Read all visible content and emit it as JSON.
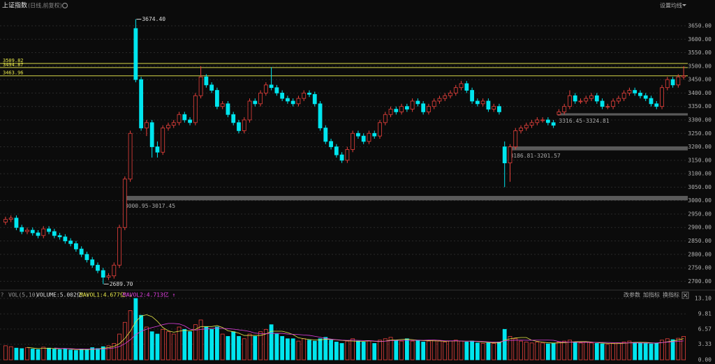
{
  "chart_data": [
    {
      "type": "candlestick",
      "title": "上证指数",
      "subtitle": "(日线,前复权)",
      "settings_label": "设置均线",
      "up_color": "#e8413c",
      "down_color": "#00e5ee",
      "open": [
        2920,
        2930,
        2935,
        2900,
        2885,
        2890,
        2880,
        2870,
        2895,
        2885,
        2870,
        2865,
        2850,
        2840,
        2820,
        2800,
        2780,
        2760,
        2740,
        2715,
        2720,
        2760,
        2900,
        3080,
        3640,
        3450,
        3270,
        3290,
        3200,
        3180,
        3270,
        3280,
        3290,
        3320,
        3300,
        3290,
        3390,
        3460,
        3430,
        3410,
        3350,
        3360,
        3320,
        3290,
        3260,
        3300,
        3370,
        3360,
        3400,
        3430,
        3420,
        3400,
        3380,
        3370,
        3360,
        3380,
        3400,
        3395,
        3360,
        3270,
        3220,
        3200,
        3170,
        3150,
        3190,
        3250,
        3240,
        3220,
        3250,
        3240,
        3290,
        3320,
        3340,
        3330,
        3350,
        3340,
        3370,
        3360,
        3330,
        3350,
        3370,
        3380,
        3390,
        3400,
        3420,
        3435,
        3410,
        3370,
        3360,
        3370,
        3340,
        3350,
        3200,
        3140,
        3200,
        3260,
        3270,
        3280,
        3290,
        3300,
        3300,
        3290,
        3320,
        3330,
        3350,
        3390,
        3370,
        3370,
        3380,
        3390,
        3370,
        3350,
        3350,
        3370,
        3380,
        3400,
        3410,
        3400,
        3390,
        3380,
        3360,
        3350,
        3420,
        3450,
        3430,
        3460
      ],
      "high": [
        2940,
        2945,
        2945,
        2910,
        2900,
        2900,
        2890,
        2905,
        2905,
        2895,
        2880,
        2875,
        2860,
        2850,
        2830,
        2810,
        2790,
        2770,
        2750,
        2730,
        2770,
        2910,
        3090,
        3260,
        3674.4,
        3460,
        3300,
        3300,
        3220,
        3280,
        3290,
        3300,
        3330,
        3330,
        3310,
        3400,
        3500,
        3470,
        3440,
        3420,
        3370,
        3370,
        3330,
        3300,
        3310,
        3380,
        3380,
        3410,
        3440,
        3496,
        3430,
        3410,
        3390,
        3380,
        3390,
        3410,
        3410,
        3405,
        3370,
        3280,
        3230,
        3210,
        3180,
        3200,
        3260,
        3260,
        3250,
        3260,
        3260,
        3300,
        3330,
        3350,
        3350,
        3360,
        3360,
        3380,
        3380,
        3370,
        3360,
        3380,
        3390,
        3400,
        3410,
        3430,
        3445,
        3445,
        3420,
        3380,
        3380,
        3380,
        3360,
        3360,
        3220,
        3210,
        3270,
        3280,
        3290,
        3300,
        3310,
        3310,
        3310,
        3300,
        3340,
        3360,
        3410,
        3400,
        3380,
        3390,
        3400,
        3400,
        3380,
        3360,
        3380,
        3390,
        3410,
        3420,
        3420,
        3410,
        3400,
        3390,
        3370,
        3430,
        3460,
        3460,
        3470,
        3500
      ],
      "low": [
        2910,
        2920,
        2890,
        2875,
        2875,
        2870,
        2860,
        2860,
        2875,
        2860,
        2855,
        2840,
        2830,
        2810,
        2790,
        2770,
        2750,
        2730,
        2689.7,
        2705,
        2710,
        2750,
        2890,
        3070,
        3440,
        3260,
        3240,
        3160,
        3160,
        3170,
        3260,
        3270,
        3280,
        3290,
        3280,
        3280,
        3380,
        3420,
        3400,
        3340,
        3340,
        3310,
        3280,
        3250,
        3250,
        3290,
        3350,
        3350,
        3390,
        3410,
        3390,
        3370,
        3360,
        3350,
        3350,
        3370,
        3385,
        3350,
        3260,
        3210,
        3190,
        3160,
        3140,
        3140,
        3180,
        3230,
        3210,
        3210,
        3230,
        3230,
        3280,
        3310,
        3320,
        3320,
        3330,
        3330,
        3350,
        3320,
        3320,
        3340,
        3360,
        3370,
        3380,
        3390,
        3410,
        3400,
        3360,
        3350,
        3350,
        3330,
        3330,
        3320,
        3050,
        3070,
        3190,
        3250,
        3260,
        3270,
        3280,
        3290,
        3280,
        3270,
        3316.45,
        3320,
        3340,
        3360,
        3360,
        3360,
        3370,
        3360,
        3340,
        3340,
        3340,
        3360,
        3370,
        3390,
        3390,
        3380,
        3370,
        3350,
        3340,
        3340,
        3410,
        3420,
        3420,
        3450
      ],
      "close": [
        2930,
        2935,
        2900,
        2885,
        2890,
        2880,
        2870,
        2895,
        2885,
        2870,
        2865,
        2850,
        2840,
        2820,
        2800,
        2780,
        2760,
        2740,
        2715,
        2720,
        2760,
        2900,
        3080,
        3250,
        3450,
        3270,
        3290,
        3200,
        3180,
        3270,
        3280,
        3290,
        3320,
        3300,
        3290,
        3390,
        3460,
        3430,
        3410,
        3350,
        3360,
        3320,
        3290,
        3260,
        3300,
        3370,
        3360,
        3400,
        3430,
        3420,
        3400,
        3380,
        3370,
        3360,
        3380,
        3400,
        3395,
        3360,
        3270,
        3220,
        3200,
        3170,
        3150,
        3190,
        3250,
        3240,
        3220,
        3250,
        3240,
        3290,
        3320,
        3340,
        3330,
        3350,
        3340,
        3370,
        3360,
        3330,
        3350,
        3370,
        3380,
        3390,
        3400,
        3420,
        3435,
        3410,
        3370,
        3360,
        3370,
        3340,
        3350,
        3330,
        3140,
        3200,
        3260,
        3270,
        3280,
        3290,
        3300,
        3300,
        3290,
        3280,
        3330,
        3350,
        3390,
        3370,
        3370,
        3380,
        3390,
        3370,
        3350,
        3350,
        3370,
        3380,
        3400,
        3410,
        3400,
        3390,
        3380,
        3360,
        3350,
        3420,
        3450,
        3430,
        3460,
        3463.96
      ],
      "ylim": [
        2675,
        3720
      ],
      "yticks": [
        {
          "value": 2700,
          "label": "2700.00"
        },
        {
          "value": 2750,
          "label": "2750.00"
        },
        {
          "value": 2800,
          "label": "2800.00"
        },
        {
          "value": 2850,
          "label": "2850.00"
        },
        {
          "value": 2900,
          "label": "2900.00"
        },
        {
          "value": 2950,
          "label": "2950.00"
        },
        {
          "value": 3000,
          "label": "3000.00"
        },
        {
          "value": 3050,
          "label": "3050.00"
        },
        {
          "value": 3100,
          "label": "3100.00"
        },
        {
          "value": 3150,
          "label": "3150.00"
        },
        {
          "value": 3200,
          "label": "3200.00"
        },
        {
          "value": 3250,
          "label": "3250.00"
        },
        {
          "value": 3300,
          "label": "3300.00"
        },
        {
          "value": 3350,
          "label": "3350.00"
        },
        {
          "value": 3400,
          "label": "3400.00"
        },
        {
          "value": 3450,
          "label": "3450.00"
        },
        {
          "value": 3500,
          "label": "3500.00"
        },
        {
          "value": 3550,
          "label": "3550.00"
        },
        {
          "value": 3600,
          "label": "3600.00"
        },
        {
          "value": 3650,
          "label": "3650.00"
        }
      ],
      "grid": true,
      "ref_lines": [
        {
          "value": 3509.82,
          "label": "3509.82"
        },
        {
          "value": 3494.87,
          "label": "3494.87"
        },
        {
          "value": 3463.96,
          "label": "3463.96"
        }
      ],
      "gap_zones": [
        {
          "low": 3000.95,
          "high": 3017.45,
          "label": "3000.95-3017.45"
        },
        {
          "low": 3186.81,
          "high": 3201.57,
          "label": "3186.81-3201.57"
        },
        {
          "low": 3316.45,
          "high": 3324.81,
          "label": "3316.45-3324.81"
        }
      ],
      "max_label": "3674.40",
      "min_label": "2689.70"
    },
    {
      "type": "bar",
      "title": "VOL(5,10)",
      "volume_label": "VOLUME:5.002亿 ↑",
      "mavol1_label": "MAVOL1:4.677亿 ↓",
      "mavol2_label": "MAVOL2:4.713亿 ↑",
      "mavol1_color": "#e8e84a",
      "mavol2_color": "#e040e0",
      "buttons": [
        "改参数",
        "加指标",
        "换指标"
      ],
      "values": [
        3.0,
        2.8,
        2.5,
        2.4,
        2.6,
        2.3,
        2.2,
        2.7,
        2.5,
        2.3,
        2.2,
        2.4,
        2.1,
        2.0,
        2.3,
        2.2,
        2.6,
        2.4,
        2.8,
        3.0,
        3.5,
        5.5,
        8.0,
        10.5,
        13.1,
        9.5,
        7.0,
        6.0,
        5.5,
        6.5,
        6.0,
        5.5,
        7.0,
        6.5,
        6.0,
        7.5,
        8.5,
        7.0,
        6.5,
        7.0,
        5.5,
        5.0,
        6.0,
        5.0,
        4.5,
        5.5,
        5.0,
        6.0,
        6.5,
        7.5,
        5.5,
        5.0,
        4.5,
        4.5,
        4.0,
        4.5,
        4.2,
        4.0,
        4.5,
        4.8,
        4.2,
        3.8,
        3.5,
        4.0,
        4.5,
        4.0,
        3.8,
        4.0,
        3.5,
        4.2,
        4.5,
        4.8,
        4.2,
        4.0,
        4.5,
        4.0,
        4.2,
        3.8,
        4.0,
        4.2,
        4.0,
        3.8,
        4.0,
        4.2,
        4.0,
        3.8,
        4.0,
        3.6,
        3.5,
        3.6,
        3.5,
        3.8,
        6.5,
        5.0,
        4.5,
        4.0,
        3.8,
        3.6,
        3.8,
        3.6,
        3.4,
        3.5,
        3.8,
        4.0,
        4.2,
        3.8,
        3.6,
        3.8,
        3.6,
        3.5,
        3.4,
        3.3,
        3.5,
        3.6,
        3.8,
        4.0,
        3.7,
        3.6,
        3.5,
        3.4,
        3.6,
        4.2,
        4.5,
        4.3,
        4.6,
        5.002
      ],
      "ylim": [
        0,
        13.1
      ],
      "yticks": [
        {
          "value": 0,
          "label": "0.00"
        },
        {
          "value": 3.33,
          "label": "3.33"
        },
        {
          "value": 6.57,
          "label": "6.57"
        },
        {
          "value": 9.81,
          "label": "9.81"
        },
        {
          "value": 13.1,
          "label": "13.10"
        }
      ]
    }
  ]
}
